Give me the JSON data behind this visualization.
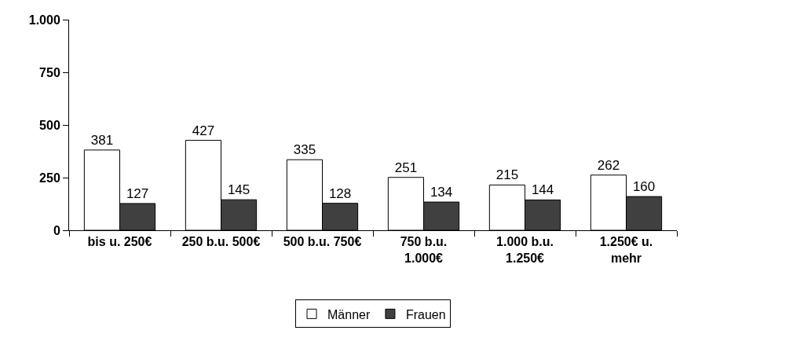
{
  "chart_data": {
    "type": "bar",
    "categories": [
      "bis u. 250€",
      "250 b.u. 500€",
      "500 b.u. 750€",
      "750 b.u.\n1.000€",
      "1.000 b.u.\n1.250€",
      "1.250€ u.\nmehr"
    ],
    "series": [
      {
        "name": "Männer",
        "color": "#ffffff",
        "values": [
          381,
          427,
          335,
          251,
          215,
          262
        ]
      },
      {
        "name": "Frauen",
        "color": "#404040",
        "values": [
          127,
          145,
          128,
          134,
          144,
          160
        ]
      }
    ],
    "ylim": [
      0,
      1000
    ],
    "yticks": [
      0,
      250,
      500,
      750,
      {
        "value": 1000,
        "label": "1.000"
      }
    ],
    "legend": "bottom",
    "data_labels": true
  }
}
